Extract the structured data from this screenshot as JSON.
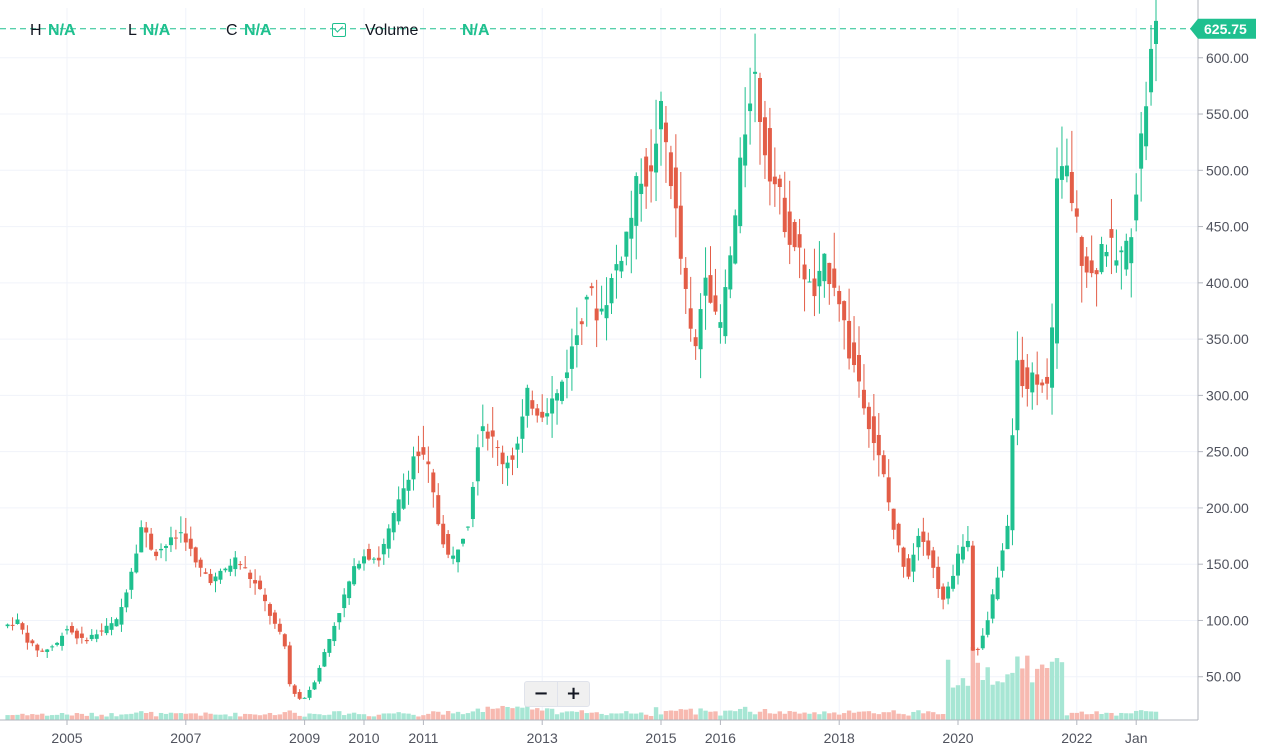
{
  "legend": {
    "h_label": "H",
    "h_value": "N/A",
    "l_label": "L",
    "l_value": "N/A",
    "c_label": "C",
    "c_value": "N/A",
    "volume_label": "Volume",
    "volume_value": "N/A"
  },
  "controls": {
    "zoom_out": "−",
    "zoom_in": "+"
  },
  "colors": {
    "up": "#1fc08f",
    "down": "#e35d47",
    "up_vol": "#a7e6d4",
    "down_vol": "#f7b9b0",
    "grid": "#f0f3fa",
    "axis_text": "#50535e",
    "price_line": "#1fc08f"
  },
  "chart_data": {
    "type": "candlestick",
    "title": "",
    "current_price": 625.75,
    "current_price_label": "625.75",
    "y_ticks": [
      "50.00",
      "100.00",
      "150.00",
      "200.00",
      "250.00",
      "300.00",
      "350.00",
      "400.00",
      "450.00",
      "500.00",
      "550.00",
      "600.00"
    ],
    "ylim": [
      0,
      660
    ],
    "x_labels": [
      {
        "label": "2005",
        "t": 2005.0
      },
      {
        "label": "2007",
        "t": 2007.0
      },
      {
        "label": "2009",
        "t": 2009.0
      },
      {
        "label": "2010",
        "t": 2010.0
      },
      {
        "label": "2011",
        "t": 2011.0
      },
      {
        "label": "2013",
        "t": 2013.0
      },
      {
        "label": "2015",
        "t": 2015.0
      },
      {
        "label": "2016",
        "t": 2016.0
      },
      {
        "label": "2018",
        "t": 2018.0
      },
      {
        "label": "2020",
        "t": 2020.0
      },
      {
        "label": "2022",
        "t": 2022.0
      },
      {
        "label": "Jan",
        "t": 2023.0
      }
    ],
    "xlim": [
      2004.0,
      2023.5
    ],
    "price_path": [
      [
        2004.0,
        95
      ],
      [
        2004.2,
        100
      ],
      [
        2004.4,
        80
      ],
      [
        2004.6,
        72
      ],
      [
        2004.9,
        80
      ],
      [
        2005.0,
        95
      ],
      [
        2005.3,
        82
      ],
      [
        2005.6,
        90
      ],
      [
        2005.9,
        100
      ],
      [
        2006.1,
        140
      ],
      [
        2006.3,
        185
      ],
      [
        2006.5,
        160
      ],
      [
        2006.8,
        170
      ],
      [
        2007.0,
        180
      ],
      [
        2007.2,
        150
      ],
      [
        2007.5,
        135
      ],
      [
        2007.7,
        145
      ],
      [
        2007.9,
        155
      ],
      [
        2008.1,
        140
      ],
      [
        2008.3,
        125
      ],
      [
        2008.5,
        100
      ],
      [
        2008.7,
        80
      ],
      [
        2008.8,
        40
      ],
      [
        2009.0,
        28
      ],
      [
        2009.2,
        45
      ],
      [
        2009.4,
        75
      ],
      [
        2009.6,
        105
      ],
      [
        2009.8,
        135
      ],
      [
        2010.0,
        160
      ],
      [
        2010.3,
        155
      ],
      [
        2010.6,
        200
      ],
      [
        2010.9,
        250
      ],
      [
        2011.1,
        240
      ],
      [
        2011.3,
        185
      ],
      [
        2011.5,
        150
      ],
      [
        2011.8,
        190
      ],
      [
        2012.0,
        280
      ],
      [
        2012.2,
        260
      ],
      [
        2012.4,
        240
      ],
      [
        2012.6,
        250
      ],
      [
        2012.8,
        300
      ],
      [
        2013.0,
        285
      ],
      [
        2013.3,
        300
      ],
      [
        2013.6,
        350
      ],
      [
        2013.8,
        395
      ],
      [
        2014.0,
        370
      ],
      [
        2014.2,
        400
      ],
      [
        2014.5,
        450
      ],
      [
        2014.7,
        500
      ],
      [
        2014.9,
        490
      ],
      [
        2015.0,
        560
      ],
      [
        2015.2,
        500
      ],
      [
        2015.4,
        410
      ],
      [
        2015.6,
        330
      ],
      [
        2015.8,
        420
      ],
      [
        2016.0,
        350
      ],
      [
        2016.1,
        380
      ],
      [
        2016.3,
        460
      ],
      [
        2016.5,
        560
      ],
      [
        2016.6,
        590
      ],
      [
        2016.8,
        520
      ],
      [
        2017.0,
        480
      ],
      [
        2017.2,
        445
      ],
      [
        2017.4,
        420
      ],
      [
        2017.6,
        385
      ],
      [
        2017.8,
        415
      ],
      [
        2018.0,
        400
      ],
      [
        2018.2,
        340
      ],
      [
        2018.4,
        310
      ],
      [
        2018.6,
        265
      ],
      [
        2018.8,
        225
      ],
      [
        2019.0,
        170
      ],
      [
        2019.2,
        140
      ],
      [
        2019.4,
        185
      ],
      [
        2019.6,
        150
      ],
      [
        2019.8,
        115
      ],
      [
        2020.0,
        150
      ],
      [
        2020.2,
        180
      ],
      [
        2020.3,
        65
      ],
      [
        2020.5,
        90
      ],
      [
        2020.7,
        140
      ],
      [
        2020.9,
        185
      ],
      [
        2021.0,
        330
      ],
      [
        2021.2,
        310
      ],
      [
        2021.4,
        320
      ],
      [
        2021.6,
        300
      ],
      [
        2021.7,
        505
      ],
      [
        2021.9,
        495
      ],
      [
        2022.1,
        430
      ],
      [
        2022.3,
        405
      ],
      [
        2022.5,
        440
      ],
      [
        2022.7,
        420
      ],
      [
        2022.9,
        430
      ],
      [
        2023.0,
        470
      ],
      [
        2023.2,
        560
      ],
      [
        2023.35,
        625.75
      ]
    ]
  }
}
